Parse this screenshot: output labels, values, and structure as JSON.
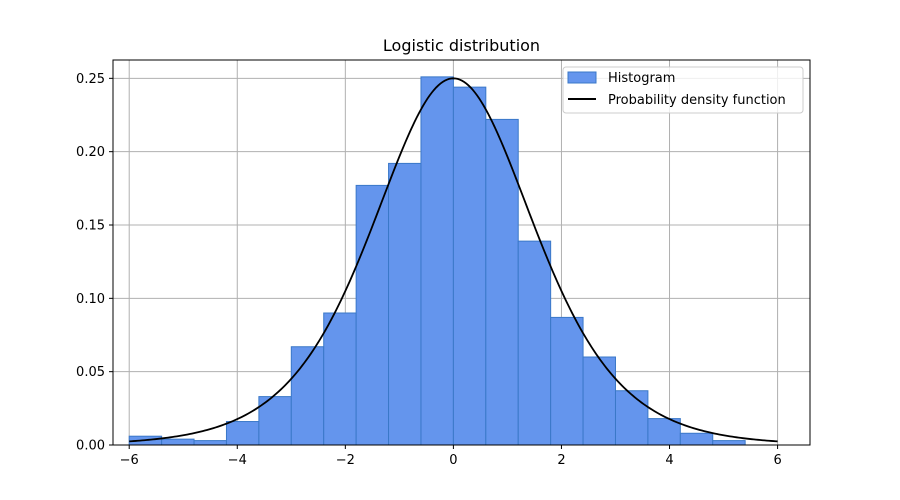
{
  "chart_data": {
    "type": "bar",
    "title": "Logistic distribution",
    "xlabel": "",
    "ylabel": "",
    "xlim": [
      -6.3,
      6.6
    ],
    "ylim": [
      0.0,
      0.2625
    ],
    "grid": true,
    "legend_position": "top-right",
    "x_ticks": [
      -6,
      -4,
      -2,
      0,
      2,
      4,
      6
    ],
    "x_tick_labels": [
      "−6",
      "−4",
      "−2",
      "0",
      "2",
      "4",
      "6"
    ],
    "y_ticks": [
      0.0,
      0.05,
      0.1,
      0.15,
      0.2,
      0.25
    ],
    "y_tick_labels": [
      "0.00",
      "0.05",
      "0.10",
      "0.15",
      "0.20",
      "0.25"
    ],
    "series": [
      {
        "name": "Histogram",
        "kind": "histogram",
        "color": "#6495ed",
        "edge_color": "#3a78c8",
        "bin_edges": [
          -6.0,
          -5.4,
          -4.8,
          -4.2,
          -3.6,
          -3.0,
          -2.4,
          -1.8,
          -1.2,
          -0.6,
          0.0,
          0.6,
          1.2,
          1.8,
          2.4,
          3.0,
          3.6,
          4.2,
          4.8,
          5.4
        ],
        "values": [
          0.006,
          0.004,
          0.003,
          0.016,
          0.033,
          0.067,
          0.09,
          0.177,
          0.192,
          0.251,
          0.244,
          0.222,
          0.139,
          0.087,
          0.06,
          0.037,
          0.018,
          0.008,
          0.003
        ]
      },
      {
        "name": "Probability density function",
        "kind": "line",
        "color": "#000000",
        "function": "logistic",
        "loc": 0,
        "scale": 1,
        "x_range": [
          -6,
          6
        ]
      }
    ]
  }
}
